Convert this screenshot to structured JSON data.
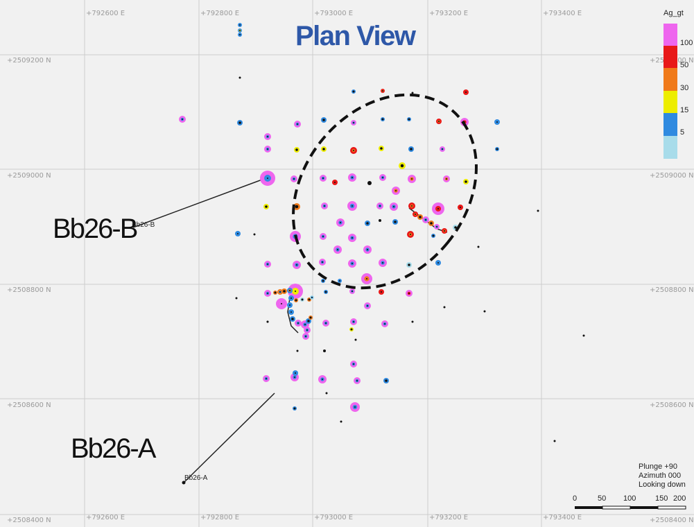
{
  "title": "Plan View",
  "axes": {
    "easting_top": [
      "+792600 E",
      "+792800 E",
      "+793000 E",
      "+793200 E",
      "+793400 E"
    ],
    "easting_bottom": [
      "+792600 E",
      "+792800 E",
      "+793000 E",
      "+793200 E",
      "+793400 E"
    ],
    "northing_left": [
      "+2509200 N",
      "+2509000 N",
      "+2508800 N",
      "+2508600 N",
      "+2508400 N"
    ],
    "northing_right": [
      "+2509200 N",
      "+2509000 N",
      "+2508800 N",
      "+2508600 N",
      "+2508400 N"
    ]
  },
  "legend": {
    "title": "Ag_gt",
    "entries": [
      {
        "label": "100",
        "color": "#ee66ee"
      },
      {
        "label": "50",
        "color": "#e81818"
      },
      {
        "label": "30",
        "color": "#f07a1a"
      },
      {
        "label": "15",
        "color": "#eded00"
      },
      {
        "label": "5",
        "color": "#2f8ae0"
      },
      {
        "label": "",
        "color": "#a8dcea"
      }
    ]
  },
  "view": {
    "plunge": "Plunge +90",
    "azimuth": "Azimuth 000",
    "looking": "Looking down"
  },
  "scale_bar": {
    "labels": [
      "0",
      "50",
      "100",
      "150",
      "200"
    ]
  },
  "holes": {
    "b": {
      "big_label": "Bb26-B",
      "small_label": "Bb26-B"
    },
    "a": {
      "big_label": "Bb26-A",
      "small_label": "Bb26-A"
    }
  },
  "target_zone": {
    "style": "dashed-ellipse",
    "color": "#111111"
  },
  "colors": {
    "background": "#f1f1f1",
    "grid": "#cccccc",
    "title": "#2e58a8"
  }
}
